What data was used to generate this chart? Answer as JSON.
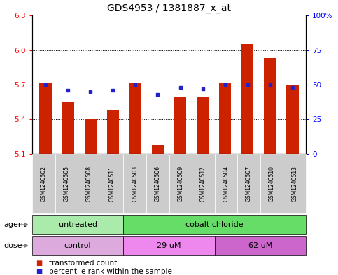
{
  "title": "GDS4953 / 1381887_x_at",
  "samples": [
    "GSM1240502",
    "GSM1240505",
    "GSM1240508",
    "GSM1240511",
    "GSM1240503",
    "GSM1240506",
    "GSM1240509",
    "GSM1240512",
    "GSM1240504",
    "GSM1240507",
    "GSM1240510",
    "GSM1240513"
  ],
  "bar_values": [
    5.71,
    5.55,
    5.4,
    5.48,
    5.71,
    5.18,
    5.6,
    5.6,
    5.72,
    6.05,
    5.93,
    5.7
  ],
  "dot_values": [
    50,
    46,
    45,
    46,
    50,
    43,
    48,
    47,
    50,
    50,
    50,
    48
  ],
  "ymin": 5.1,
  "ymax": 6.3,
  "yticks_left": [
    5.1,
    5.4,
    5.7,
    6.0,
    6.3
  ],
  "yticks_right": [
    0,
    25,
    50,
    75,
    100
  ],
  "grid_lines": [
    5.4,
    5.7,
    6.0
  ],
  "bar_color": "#cc2200",
  "dot_color": "#2222cc",
  "agent_groups": [
    {
      "label": "untreated",
      "start": 0,
      "end": 4,
      "color": "#aaeaaa"
    },
    {
      "label": "cobalt chloride",
      "start": 4,
      "end": 12,
      "color": "#66dd66"
    }
  ],
  "dose_groups": [
    {
      "label": "control",
      "start": 0,
      "end": 4,
      "color": "#ddaadd"
    },
    {
      "label": "29 uM",
      "start": 4,
      "end": 8,
      "color": "#ee88ee"
    },
    {
      "label": "62 uM",
      "start": 8,
      "end": 12,
      "color": "#cc66cc"
    }
  ],
  "legend_bar_label": "transformed count",
  "legend_dot_label": "percentile rank within the sample",
  "agent_label": "agent",
  "dose_label": "dose",
  "title_fontsize": 10,
  "tick_fontsize": 7.5,
  "label_fontsize": 8,
  "group_fontsize": 8,
  "legend_fontsize": 7.5,
  "background_color": "#ffffff",
  "sample_bg_color": "#cccccc",
  "bar_width": 0.55
}
